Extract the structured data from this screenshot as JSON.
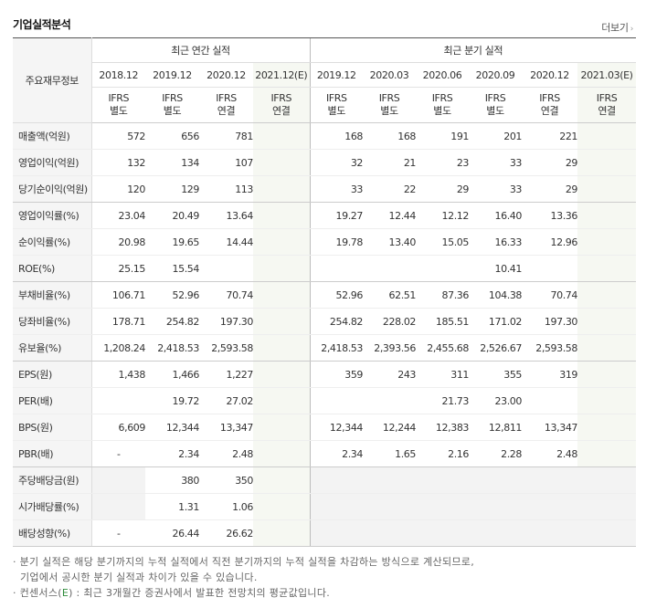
{
  "title": "기업실적분석",
  "more": "더보기",
  "label_head": "주요재무정보",
  "group_annual": "최근 연간 실적",
  "group_quarter": "최근 분기 실적",
  "annual_periods": [
    "2018.12",
    "2019.12",
    "2020.12",
    "2021.12(E)"
  ],
  "quarter_periods": [
    "2019.12",
    "2020.03",
    "2020.06",
    "2020.09",
    "2020.12",
    "2021.03(E)"
  ],
  "annual_ifrs": [
    [
      "IFRS",
      "별도"
    ],
    [
      "IFRS",
      "별도"
    ],
    [
      "IFRS",
      "연결"
    ],
    [
      "IFRS",
      "연결"
    ]
  ],
  "quarter_ifrs": [
    [
      "IFRS",
      "별도"
    ],
    [
      "IFRS",
      "별도"
    ],
    [
      "IFRS",
      "별도"
    ],
    [
      "IFRS",
      "별도"
    ],
    [
      "IFRS",
      "연결"
    ],
    [
      "IFRS",
      "연결"
    ]
  ],
  "rows": [
    {
      "label": "매출액(억원)",
      "annual": [
        "572",
        "656",
        "781",
        ""
      ],
      "quarter": [
        "168",
        "168",
        "191",
        "201",
        "221",
        ""
      ]
    },
    {
      "label": "영업이익(억원)",
      "annual": [
        "132",
        "134",
        "107",
        ""
      ],
      "quarter": [
        "32",
        "21",
        "23",
        "33",
        "29",
        ""
      ]
    },
    {
      "label": "당기순이익(억원)",
      "annual": [
        "120",
        "129",
        "113",
        ""
      ],
      "quarter": [
        "33",
        "22",
        "29",
        "33",
        "29",
        ""
      ]
    },
    {
      "label": "영업이익률(%)",
      "annual": [
        "23.04",
        "20.49",
        "13.64",
        ""
      ],
      "quarter": [
        "19.27",
        "12.44",
        "12.12",
        "16.40",
        "13.36",
        ""
      ]
    },
    {
      "label": "순이익률(%)",
      "annual": [
        "20.98",
        "19.65",
        "14.44",
        ""
      ],
      "quarter": [
        "19.78",
        "13.40",
        "15.05",
        "16.33",
        "12.96",
        ""
      ]
    },
    {
      "label": "ROE(%)",
      "annual": [
        "25.15",
        "15.54",
        "",
        ""
      ],
      "quarter": [
        "",
        "",
        "",
        "10.41",
        "",
        ""
      ]
    },
    {
      "label": "부채비율(%)",
      "annual": [
        "106.71",
        "52.96",
        "70.74",
        ""
      ],
      "quarter": [
        "52.96",
        "62.51",
        "87.36",
        "104.38",
        "70.74",
        ""
      ]
    },
    {
      "label": "당좌비율(%)",
      "annual": [
        "178.71",
        "254.82",
        "197.30",
        ""
      ],
      "quarter": [
        "254.82",
        "228.02",
        "185.51",
        "171.02",
        "197.30",
        ""
      ]
    },
    {
      "label": "유보율(%)",
      "annual": [
        "1,208.24",
        "2,418.53",
        "2,593.58",
        ""
      ],
      "quarter": [
        "2,418.53",
        "2,393.56",
        "2,455.68",
        "2,526.67",
        "2,593.58",
        ""
      ]
    },
    {
      "label": "EPS(원)",
      "annual": [
        "1,438",
        "1,466",
        "1,227",
        ""
      ],
      "quarter": [
        "359",
        "243",
        "311",
        "355",
        "319",
        ""
      ]
    },
    {
      "label": "PER(배)",
      "annual": [
        "",
        "19.72",
        "27.02",
        ""
      ],
      "quarter": [
        "",
        "",
        "21.73",
        "23.00",
        "",
        ""
      ]
    },
    {
      "label": "BPS(원)",
      "annual": [
        "6,609",
        "12,344",
        "13,347",
        ""
      ],
      "quarter": [
        "12,344",
        "12,244",
        "12,383",
        "12,811",
        "13,347",
        ""
      ]
    },
    {
      "label": "PBR(배)",
      "annual": [
        "-",
        "2.34",
        "2.48",
        ""
      ],
      "quarter": [
        "2.34",
        "1.65",
        "2.16",
        "2.28",
        "2.48",
        ""
      ]
    },
    {
      "label": "주당배당금(원)",
      "annual": [
        "",
        "380",
        "350",
        ""
      ],
      "quarter": [
        "",
        "",
        "",
        "",
        "",
        ""
      ]
    },
    {
      "label": "시가배당률(%)",
      "annual": [
        "",
        "1.31",
        "1.06",
        ""
      ],
      "quarter": [
        "",
        "",
        "",
        "",
        "",
        ""
      ]
    },
    {
      "label": "배당성향(%)",
      "annual": [
        "-",
        "26.44",
        "26.62",
        ""
      ],
      "quarter": [
        "",
        "",
        "",
        "",
        "",
        ""
      ]
    }
  ],
  "notes": {
    "line1": "분기 실적은 해당 분기까지의 누적 실적에서 직전 분기까지의 누적 실적을 차감하는 방식으로 계산되므로,",
    "line2": "기업에서 공시한 분기 실적과 차이가 있을 수 있습니다.",
    "line3_pre": "컨센서스(",
    "line3_e": "E",
    "line3_post": ") : 최근 3개월간 증권사에서 발표한 전망치의 평균값입니다."
  }
}
